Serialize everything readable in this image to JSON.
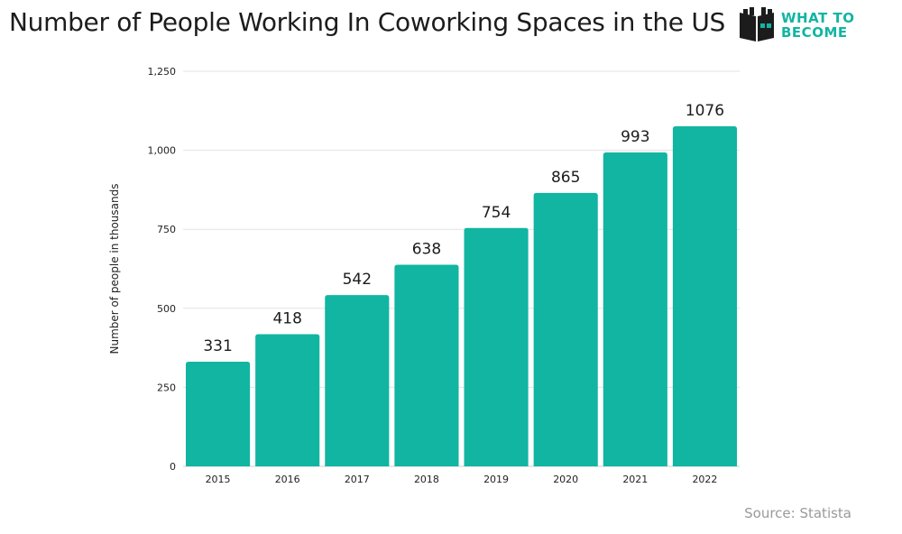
{
  "header": {
    "title": "Number of People Working In Coworking Spaces in the US",
    "logo_line1": "WHAT TO",
    "logo_line2": "BECOME"
  },
  "footer": {
    "source": "Source: Statista"
  },
  "colors": {
    "bar": "#11b5a2",
    "grid": "#e3e3e3",
    "brand": "#11b5a2"
  },
  "chart_data": {
    "type": "bar",
    "title": "Number of People Working In Coworking Spaces in the US",
    "xlabel": "",
    "ylabel": "Number of people in thousands",
    "categories": [
      "2015",
      "2016",
      "2017",
      "2018",
      "2019",
      "2020",
      "2021",
      "2022"
    ],
    "values": [
      331,
      418,
      542,
      638,
      754,
      865,
      993,
      1076
    ],
    "data_labels": [
      "331",
      "418",
      "542",
      "638",
      "754",
      "865",
      "993",
      "1076"
    ],
    "ylim": [
      0,
      1250
    ],
    "yticks": [
      0,
      250,
      500,
      750,
      1000,
      1250
    ],
    "ytick_labels": [
      "0",
      "250",
      "500",
      "750",
      "1,000",
      "1,250"
    ],
    "grid": true,
    "legend": "none"
  }
}
